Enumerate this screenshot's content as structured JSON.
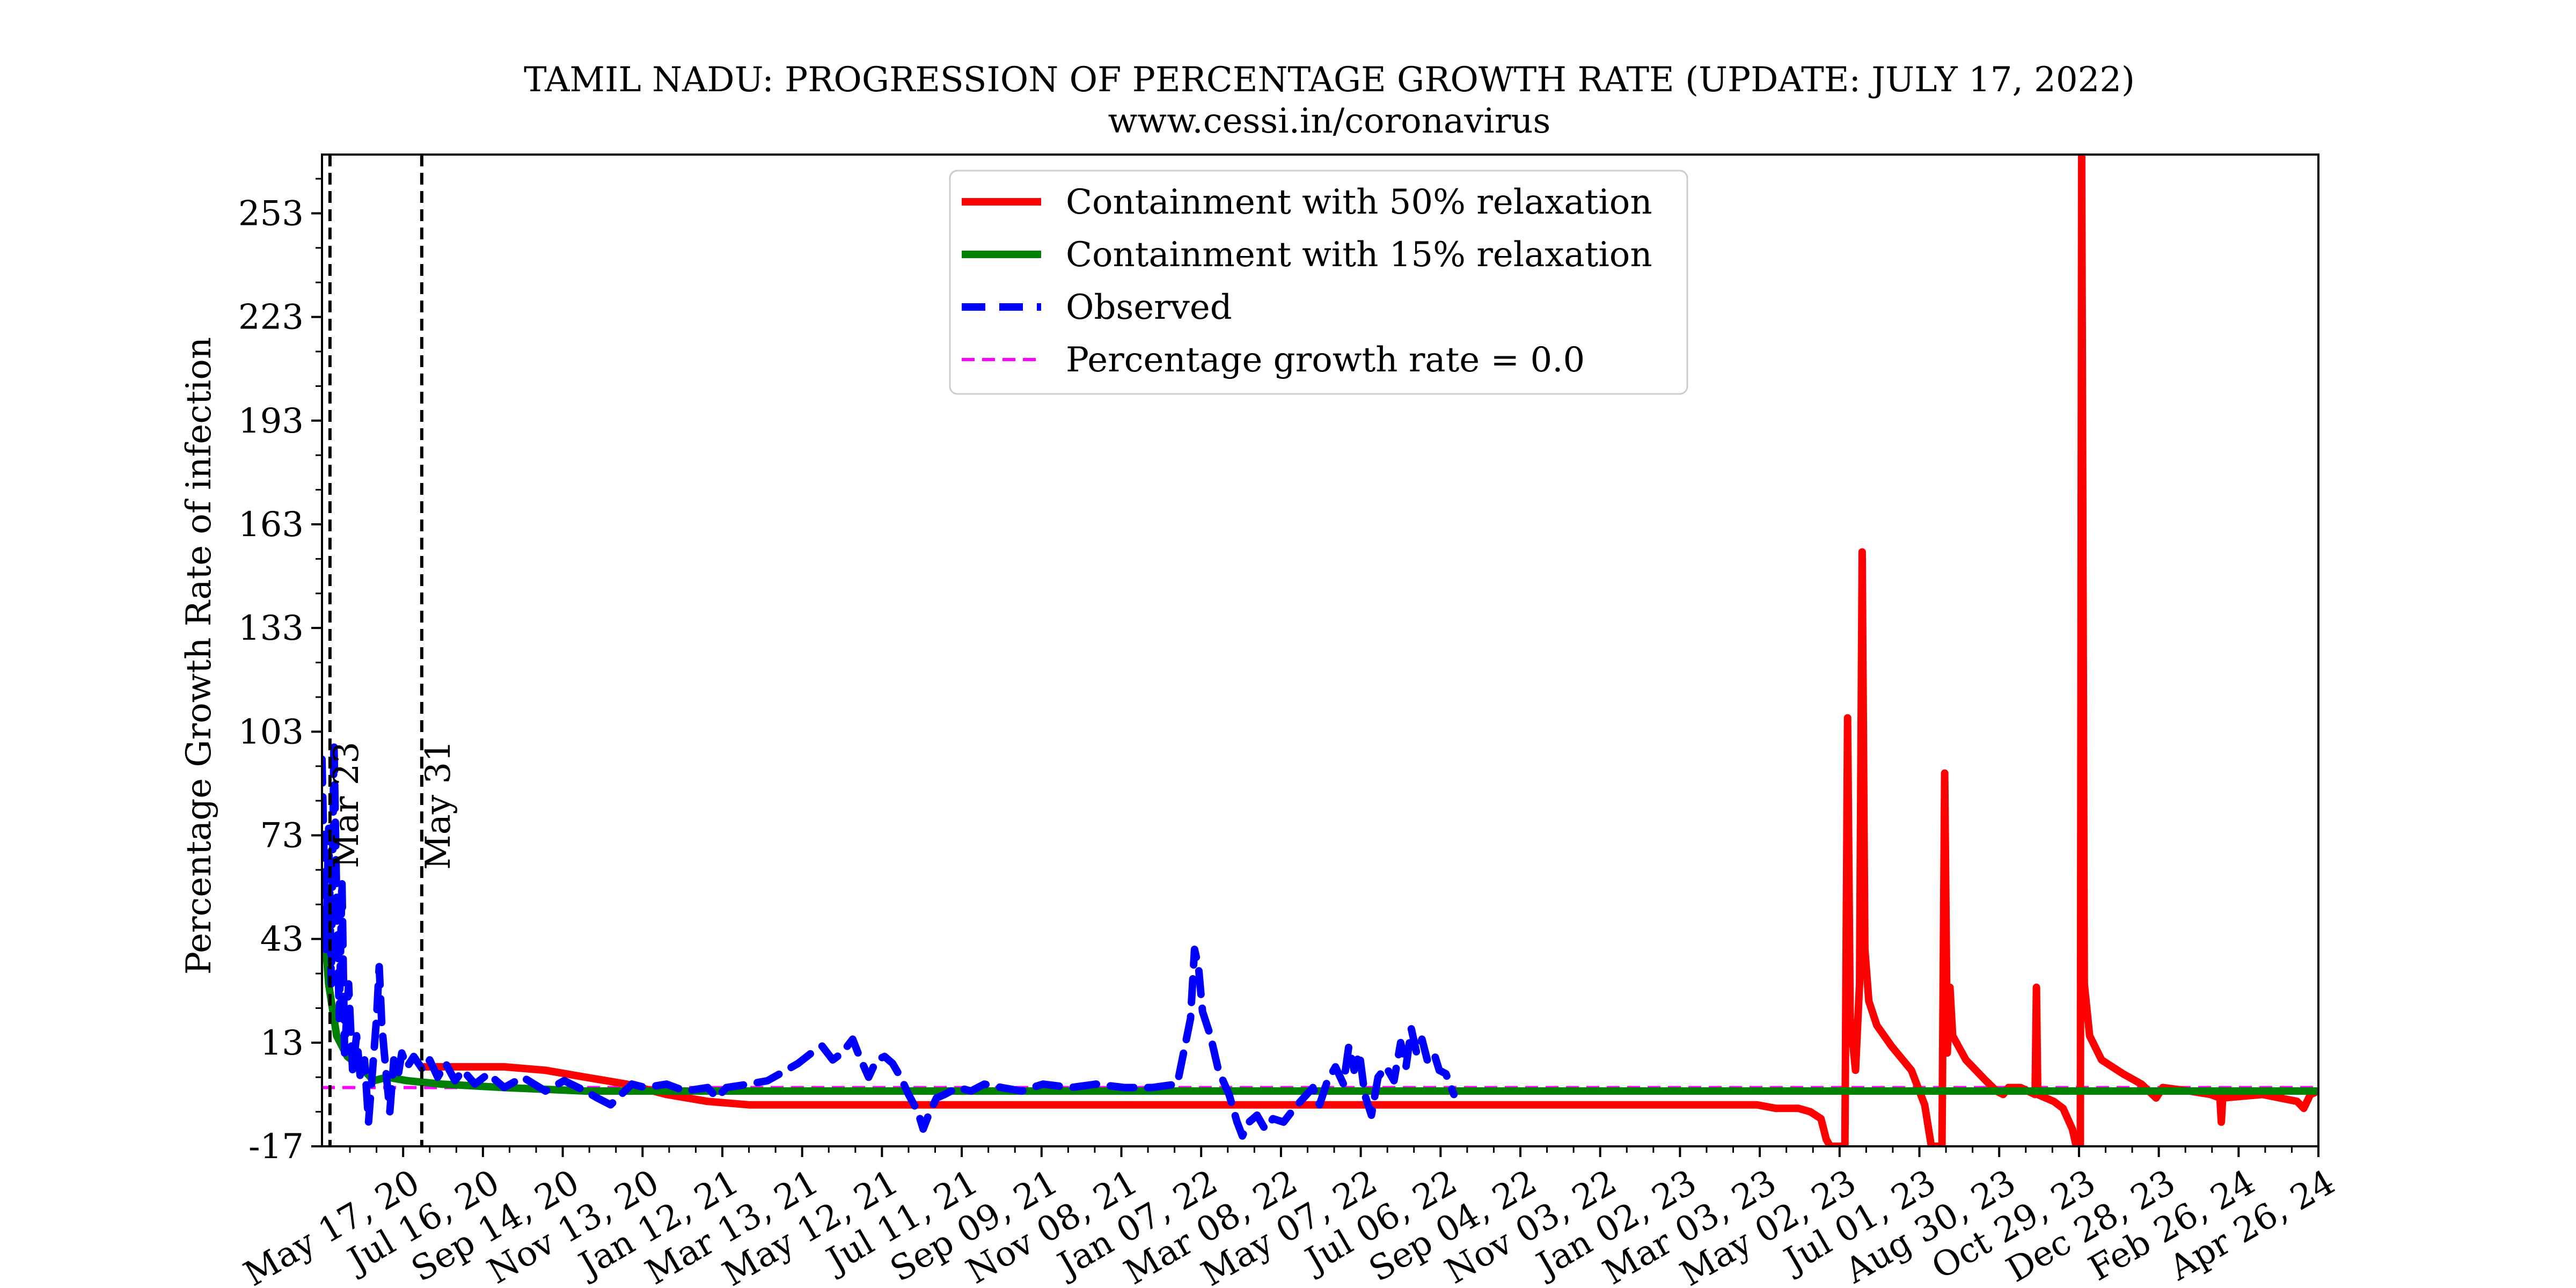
{
  "chart_data": {
    "type": "line",
    "title": "TAMIL NADU: PROGRESSION OF PERCENTAGE GROWTH RATE (UPDATE: JULY 17, 2022)",
    "subtitle": "www.cessi.in/coronavirus",
    "xlabel": "",
    "ylabel": "Percentage Growth Rate of infection",
    "ylim": [
      -17,
      270
    ],
    "xlim": [
      "2020-03-17",
      "2024-04-26"
    ],
    "y_ticks": [
      -17,
      13,
      43,
      73,
      103,
      133,
      163,
      193,
      223,
      253
    ],
    "x_ticks": [
      {
        "date": "2020-05-17",
        "label": "May 17, 20"
      },
      {
        "date": "2020-07-16",
        "label": "Jul 16, 20"
      },
      {
        "date": "2020-09-14",
        "label": "Sep 14, 20"
      },
      {
        "date": "2020-11-13",
        "label": "Nov 13, 20"
      },
      {
        "date": "2021-01-12",
        "label": "Jan 12, 21"
      },
      {
        "date": "2021-03-13",
        "label": "Mar 13, 21"
      },
      {
        "date": "2021-05-12",
        "label": "May 12, 21"
      },
      {
        "date": "2021-07-11",
        "label": "Jul 11, 21"
      },
      {
        "date": "2021-09-09",
        "label": "Sep 09, 21"
      },
      {
        "date": "2021-11-08",
        "label": "Nov 08, 21"
      },
      {
        "date": "2022-01-07",
        "label": "Jan 07, 22"
      },
      {
        "date": "2022-03-08",
        "label": "Mar 08, 22"
      },
      {
        "date": "2022-05-07",
        "label": "May 07, 22"
      },
      {
        "date": "2022-07-06",
        "label": "Jul 06, 22"
      },
      {
        "date": "2022-09-04",
        "label": "Sep 04, 22"
      },
      {
        "date": "2022-11-03",
        "label": "Nov 03, 22"
      },
      {
        "date": "2023-01-02",
        "label": "Jan 02, 23"
      },
      {
        "date": "2023-03-03",
        "label": "Mar 03, 23"
      },
      {
        "date": "2023-05-02",
        "label": "May 02, 23"
      },
      {
        "date": "2023-07-01",
        "label": "Jul 01, 23"
      },
      {
        "date": "2023-08-30",
        "label": "Aug 30, 23"
      },
      {
        "date": "2023-10-29",
        "label": "Oct 29, 23"
      },
      {
        "date": "2023-12-28",
        "label": "Dec 28, 23"
      },
      {
        "date": "2024-02-26",
        "label": "Feb 26, 24"
      },
      {
        "date": "2024-04-26",
        "label": "Apr 26, 24"
      }
    ],
    "vlines": [
      {
        "date": "2020-03-23",
        "label": "Mar 23"
      },
      {
        "date": "2020-05-31",
        "label": "May 31"
      }
    ],
    "legend": {
      "position": "top-center"
    },
    "grid": false,
    "series": [
      {
        "name": "Containment with 50% relaxation",
        "color": "#ff0000",
        "style": "solid",
        "points": [
          [
            "2020-06-01",
            6
          ],
          [
            "2020-07-01",
            6
          ],
          [
            "2020-08-01",
            6
          ],
          [
            "2020-09-01",
            5
          ],
          [
            "2020-10-01",
            3
          ],
          [
            "2020-11-01",
            1
          ],
          [
            "2020-12-01",
            -2
          ],
          [
            "2021-01-01",
            -4
          ],
          [
            "2021-02-01",
            -5
          ],
          [
            "2021-04-01",
            -5
          ],
          [
            "2022-01-01",
            -5
          ],
          [
            "2022-12-01",
            -5
          ],
          [
            "2023-02-01",
            -5
          ],
          [
            "2023-03-01",
            -5
          ],
          [
            "2023-03-15",
            -6
          ],
          [
            "2023-04-01",
            -6
          ],
          [
            "2023-04-10",
            -7
          ],
          [
            "2023-04-18",
            -9
          ],
          [
            "2023-04-22",
            -15
          ],
          [
            "2023-04-25",
            -17
          ],
          [
            "2023-05-06",
            -17
          ],
          [
            "2023-05-08",
            107
          ],
          [
            "2023-05-10",
            20
          ],
          [
            "2023-05-14",
            5
          ],
          [
            "2023-05-17",
            30
          ],
          [
            "2023-05-19",
            155
          ],
          [
            "2023-05-21",
            40
          ],
          [
            "2023-05-24",
            25
          ],
          [
            "2023-05-30",
            18
          ],
          [
            "2023-06-10",
            12
          ],
          [
            "2023-06-25",
            5
          ],
          [
            "2023-07-05",
            -5
          ],
          [
            "2023-07-10",
            -17
          ],
          [
            "2023-07-18",
            -17
          ],
          [
            "2023-07-20",
            91
          ],
          [
            "2023-07-22",
            10
          ],
          [
            "2023-07-24",
            29
          ],
          [
            "2023-07-26",
            15
          ],
          [
            "2023-08-05",
            8
          ],
          [
            "2023-08-20",
            2
          ],
          [
            "2023-08-28",
            -1
          ],
          [
            "2023-09-02",
            -2
          ],
          [
            "2023-09-06",
            0
          ],
          [
            "2023-09-15",
            0
          ],
          [
            "2023-09-26",
            -2
          ],
          [
            "2023-09-27",
            29
          ],
          [
            "2023-09-28",
            -2
          ],
          [
            "2023-10-10",
            -4
          ],
          [
            "2023-10-17",
            -6
          ],
          [
            "2023-10-24",
            -12
          ],
          [
            "2023-10-27",
            -17
          ],
          [
            "2023-10-30",
            -17
          ],
          [
            "2023-10-31",
            270
          ],
          [
            "2023-11-02",
            30
          ],
          [
            "2023-11-06",
            15
          ],
          [
            "2023-11-15",
            8
          ],
          [
            "2023-12-01",
            4
          ],
          [
            "2023-12-15",
            1
          ],
          [
            "2023-12-26",
            -3
          ],
          [
            "2023-12-31",
            0
          ],
          [
            "2024-01-20",
            -1
          ],
          [
            "2024-02-05",
            -2
          ],
          [
            "2024-02-12",
            -3
          ],
          [
            "2024-02-13",
            -10
          ],
          [
            "2024-02-14",
            -3
          ],
          [
            "2024-03-15",
            -2
          ],
          [
            "2024-04-10",
            -4
          ],
          [
            "2024-04-15",
            -6
          ],
          [
            "2024-04-20",
            -2
          ],
          [
            "2024-04-26",
            -1
          ]
        ]
      },
      {
        "name": "Containment with 15% relaxation",
        "color": "#008000",
        "style": "solid",
        "points": [
          [
            "2020-03-18",
            50
          ],
          [
            "2020-03-22",
            30
          ],
          [
            "2020-03-28",
            15
          ],
          [
            "2020-04-05",
            9
          ],
          [
            "2020-04-15",
            6
          ],
          [
            "2020-04-25",
            2
          ],
          [
            "2020-05-05",
            3
          ],
          [
            "2020-05-20",
            2
          ],
          [
            "2020-06-15",
            1
          ],
          [
            "2020-08-01",
            0
          ],
          [
            "2020-10-01",
            -1
          ],
          [
            "2021-01-01",
            -1
          ],
          [
            "2022-01-01",
            -1
          ],
          [
            "2023-01-01",
            -1
          ],
          [
            "2024-01-01",
            -1
          ],
          [
            "2024-04-26",
            -1
          ]
        ]
      },
      {
        "name": "Observed",
        "color": "#0000ff",
        "style": "dashed",
        "points": [
          [
            "2020-03-17",
            95
          ],
          [
            "2020-03-20",
            40
          ],
          [
            "2020-03-22",
            75
          ],
          [
            "2020-03-24",
            30
          ],
          [
            "2020-03-26",
            100
          ],
          [
            "2020-03-28",
            55
          ],
          [
            "2020-03-30",
            20
          ],
          [
            "2020-04-01",
            60
          ],
          [
            "2020-04-03",
            10
          ],
          [
            "2020-04-06",
            30
          ],
          [
            "2020-04-09",
            5
          ],
          [
            "2020-04-12",
            15
          ],
          [
            "2020-04-15",
            2
          ],
          [
            "2020-04-18",
            8
          ],
          [
            "2020-04-21",
            -10
          ],
          [
            "2020-04-24",
            5
          ],
          [
            "2020-04-27",
            20
          ],
          [
            "2020-04-29",
            35
          ],
          [
            "2020-05-01",
            18
          ],
          [
            "2020-05-04",
            5
          ],
          [
            "2020-05-07",
            -7
          ],
          [
            "2020-05-10",
            8
          ],
          [
            "2020-05-13",
            3
          ],
          [
            "2020-05-16",
            10
          ],
          [
            "2020-05-20",
            6
          ],
          [
            "2020-05-25",
            9
          ],
          [
            "2020-06-01",
            5
          ],
          [
            "2020-06-06",
            8
          ],
          [
            "2020-06-12",
            3
          ],
          [
            "2020-06-18",
            7
          ],
          [
            "2020-06-25",
            2
          ],
          [
            "2020-07-01",
            5
          ],
          [
            "2020-07-10",
            1
          ],
          [
            "2020-07-20",
            4
          ],
          [
            "2020-08-01",
            0
          ],
          [
            "2020-08-15",
            3
          ],
          [
            "2020-09-01",
            -1
          ],
          [
            "2020-09-15",
            2
          ],
          [
            "2020-10-01",
            -1
          ],
          [
            "2020-10-10",
            -3
          ],
          [
            "2020-10-20",
            -5
          ],
          [
            "2020-10-28",
            -2
          ],
          [
            "2020-11-05",
            1
          ],
          [
            "2020-11-15",
            0
          ],
          [
            "2020-12-01",
            1
          ],
          [
            "2020-12-15",
            -1
          ],
          [
            "2021-01-01",
            0
          ],
          [
            "2021-01-08",
            -3
          ],
          [
            "2021-01-15",
            0
          ],
          [
            "2021-02-01",
            1
          ],
          [
            "2021-02-15",
            2
          ],
          [
            "2021-03-01",
            5
          ],
          [
            "2021-03-10",
            7
          ],
          [
            "2021-03-20",
            10
          ],
          [
            "2021-03-28",
            12
          ],
          [
            "2021-04-05",
            8
          ],
          [
            "2021-04-12",
            10
          ],
          [
            "2021-04-20",
            14
          ],
          [
            "2021-04-25",
            9
          ],
          [
            "2021-05-02",
            3
          ],
          [
            "2021-05-08",
            8
          ],
          [
            "2021-05-14",
            9
          ],
          [
            "2021-05-20",
            7
          ],
          [
            "2021-05-26",
            3
          ],
          [
            "2021-06-01",
            -2
          ],
          [
            "2021-06-08",
            -7
          ],
          [
            "2021-06-12",
            -12
          ],
          [
            "2021-06-16",
            -8
          ],
          [
            "2021-06-22",
            -3
          ],
          [
            "2021-06-28",
            -2
          ],
          [
            "2021-07-08",
            0
          ],
          [
            "2021-07-18",
            -1
          ],
          [
            "2021-07-28",
            1
          ],
          [
            "2021-08-10",
            0
          ],
          [
            "2021-08-25",
            -1
          ],
          [
            "2021-09-10",
            1
          ],
          [
            "2021-10-01",
            0
          ],
          [
            "2021-10-20",
            1
          ],
          [
            "2021-11-10",
            0
          ],
          [
            "2021-12-01",
            0
          ],
          [
            "2021-12-20",
            1
          ],
          [
            "2021-12-30",
            20
          ],
          [
            "2022-01-02",
            40
          ],
          [
            "2022-01-05",
            35
          ],
          [
            "2022-01-08",
            22
          ],
          [
            "2022-01-14",
            15
          ],
          [
            "2022-01-20",
            5
          ],
          [
            "2022-01-28",
            -2
          ],
          [
            "2022-02-03",
            -10
          ],
          [
            "2022-02-07",
            -14
          ],
          [
            "2022-02-12",
            -10
          ],
          [
            "2022-02-18",
            -8
          ],
          [
            "2022-02-24",
            -12
          ],
          [
            "2022-03-02",
            -9
          ],
          [
            "2022-03-10",
            -10
          ],
          [
            "2022-03-18",
            -6
          ],
          [
            "2022-03-25",
            -3
          ],
          [
            "2022-04-01",
            0
          ],
          [
            "2022-04-06",
            -5
          ],
          [
            "2022-04-12",
            2
          ],
          [
            "2022-04-18",
            6
          ],
          [
            "2022-04-24",
            1
          ],
          [
            "2022-04-28",
            12
          ],
          [
            "2022-05-02",
            5
          ],
          [
            "2022-05-06",
            10
          ],
          [
            "2022-05-10",
            -2
          ],
          [
            "2022-05-15",
            -8
          ],
          [
            "2022-05-20",
            3
          ],
          [
            "2022-05-26",
            6
          ],
          [
            "2022-06-01",
            2
          ],
          [
            "2022-06-06",
            13
          ],
          [
            "2022-06-10",
            6
          ],
          [
            "2022-06-14",
            17
          ],
          [
            "2022-06-18",
            10
          ],
          [
            "2022-06-22",
            14
          ],
          [
            "2022-06-26",
            8
          ],
          [
            "2022-07-01",
            10
          ],
          [
            "2022-07-05",
            5
          ],
          [
            "2022-07-10",
            4
          ],
          [
            "2022-07-16",
            -2
          ]
        ]
      },
      {
        "name": "Percentage growth rate = 0.0",
        "color": "#ff00ff",
        "style": "dashed",
        "points": [
          [
            "2020-03-17",
            0
          ],
          [
            "2024-04-26",
            0
          ]
        ]
      }
    ]
  }
}
